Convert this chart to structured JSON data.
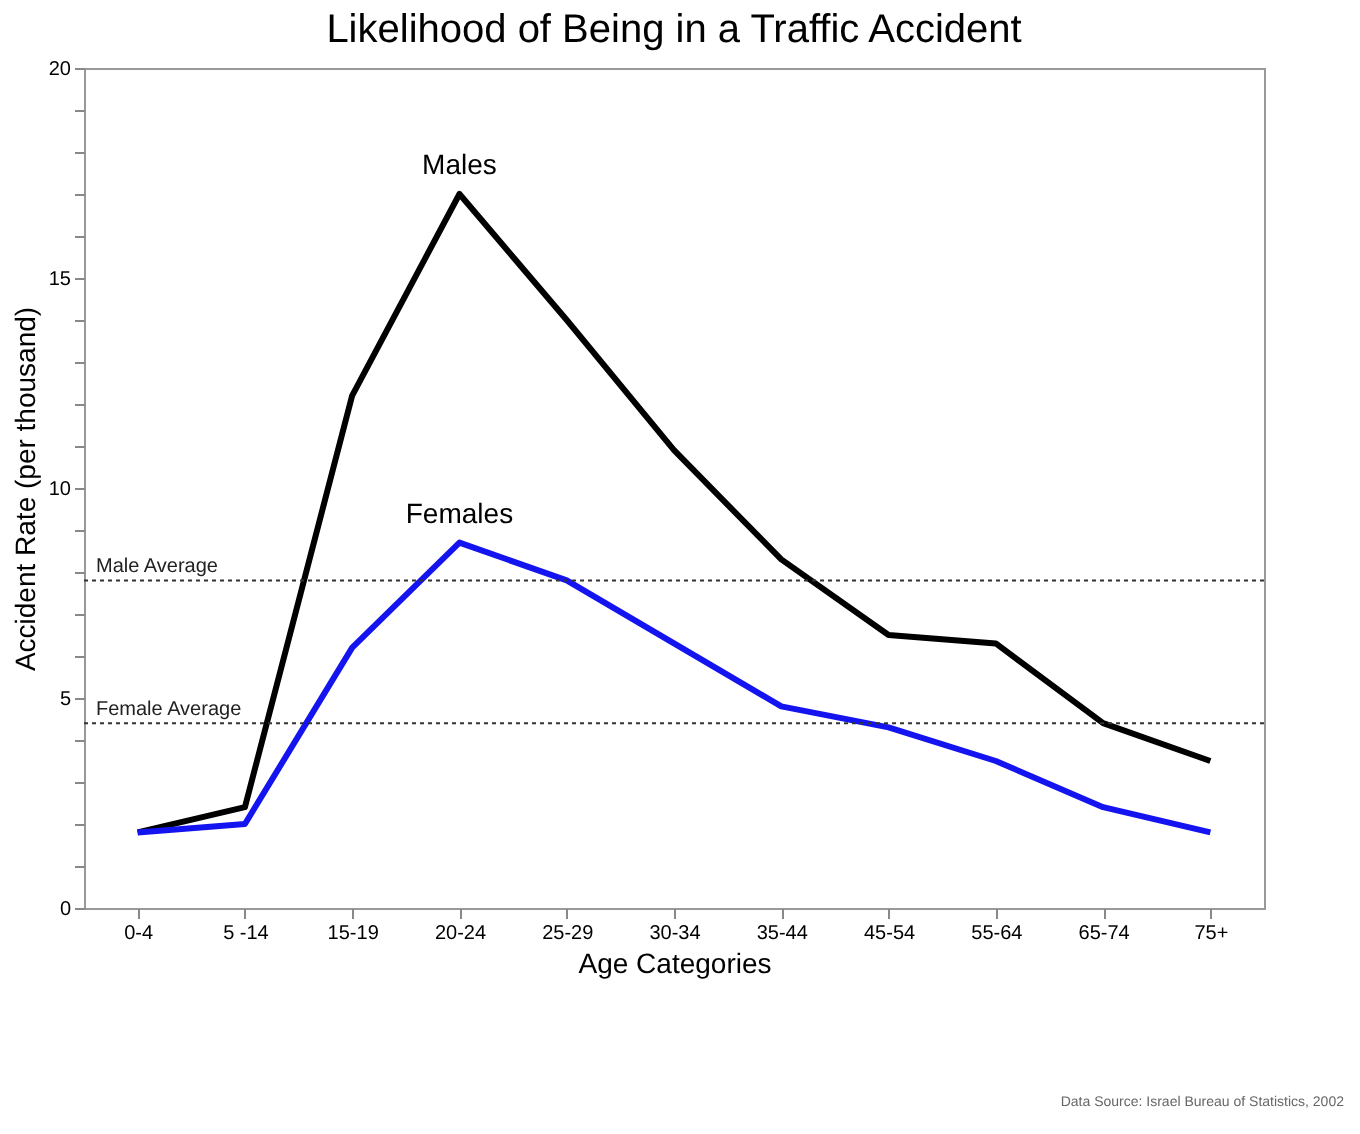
{
  "chart_data": {
    "type": "line",
    "title": "Likelihood of Being in a Traffic Accident",
    "xlabel": "Age Categories",
    "ylabel": "Accident Rate (per thousand)",
    "categories": [
      "0-4",
      "5 -14",
      "15-19",
      "20-24",
      "25-29",
      "30-34",
      "35-44",
      "45-54",
      "55-64",
      "65-74",
      "75+"
    ],
    "series": [
      {
        "name": "Males",
        "color": "#000000",
        "values": [
          1.8,
          2.4,
          12.2,
          17.0,
          14.0,
          10.9,
          8.3,
          6.5,
          6.3,
          4.4,
          3.5
        ]
      },
      {
        "name": "Females",
        "color": "#1414f0",
        "values": [
          1.8,
          2.0,
          6.2,
          8.7,
          7.8,
          6.3,
          4.8,
          4.3,
          3.5,
          2.4,
          1.8
        ]
      }
    ],
    "ylim": [
      0,
      20
    ],
    "yticks": [
      0,
      {
        "value": 1,
        "label": null
      },
      {
        "value": 2,
        "label": null
      },
      {
        "value": 3,
        "label": null
      },
      {
        "value": 4,
        "label": null
      },
      5,
      {
        "value": 6,
        "label": null
      },
      {
        "value": 7,
        "label": null
      },
      {
        "value": 8,
        "label": null
      },
      {
        "value": 9,
        "label": null
      },
      10,
      {
        "value": 11,
        "label": null
      },
      {
        "value": 12,
        "label": null
      },
      {
        "value": 13,
        "label": null
      },
      {
        "value": 14,
        "label": null
      },
      15,
      {
        "value": 16,
        "label": null
      },
      {
        "value": 17,
        "label": null
      },
      {
        "value": 18,
        "label": null
      },
      {
        "value": 19,
        "label": null
      },
      20
    ],
    "ref_lines": [
      {
        "axis": "y",
        "value": 7.8,
        "label": "Male Average",
        "color": "#333333",
        "line_style": "dotted"
      },
      {
        "axis": "y",
        "value": 4.4,
        "label": "Female Average",
        "color": "#333333",
        "line_style": "dotted"
      }
    ],
    "grid": false,
    "legend": false,
    "annotations": [
      "Data Source: Israel Bureau of Statistics, 2002"
    ]
  }
}
